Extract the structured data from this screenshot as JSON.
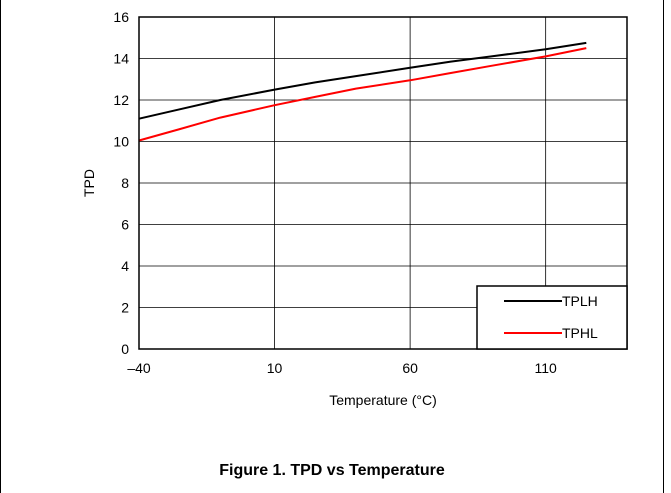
{
  "chart_data": {
    "type": "line",
    "title": "",
    "xlabel": "Temperature (°C)",
    "ylabel": "TPD",
    "xlim": [
      -40,
      140
    ],
    "ylim": [
      0,
      16
    ],
    "x_ticks": [
      -40,
      10,
      60,
      110
    ],
    "x_tick_labels": [
      "–40",
      "10",
      "60",
      "110"
    ],
    "y_ticks": [
      0,
      2,
      4,
      6,
      8,
      10,
      12,
      14,
      16
    ],
    "y_tick_labels": [
      "0",
      "2",
      "4",
      "6",
      "8",
      "10",
      "12",
      "14",
      "16"
    ],
    "grid": true,
    "legend_position": "bottom-right",
    "series": [
      {
        "name": "TPLH",
        "color": "#000000",
        "x": [
          -40,
          -25,
          -10,
          10,
          25,
          40,
          60,
          75,
          90,
          110,
          125
        ],
        "y": [
          11.1,
          11.55,
          12.0,
          12.5,
          12.85,
          13.15,
          13.55,
          13.85,
          14.1,
          14.45,
          14.75
        ]
      },
      {
        "name": "TPHL",
        "color": "#ff0000",
        "x": [
          -40,
          -25,
          -10,
          10,
          25,
          40,
          60,
          75,
          90,
          110,
          125
        ],
        "y": [
          10.05,
          10.6,
          11.15,
          11.75,
          12.15,
          12.55,
          12.95,
          13.3,
          13.65,
          14.1,
          14.5
        ]
      }
    ]
  },
  "caption": "Figure 1. TPD vs Temperature"
}
